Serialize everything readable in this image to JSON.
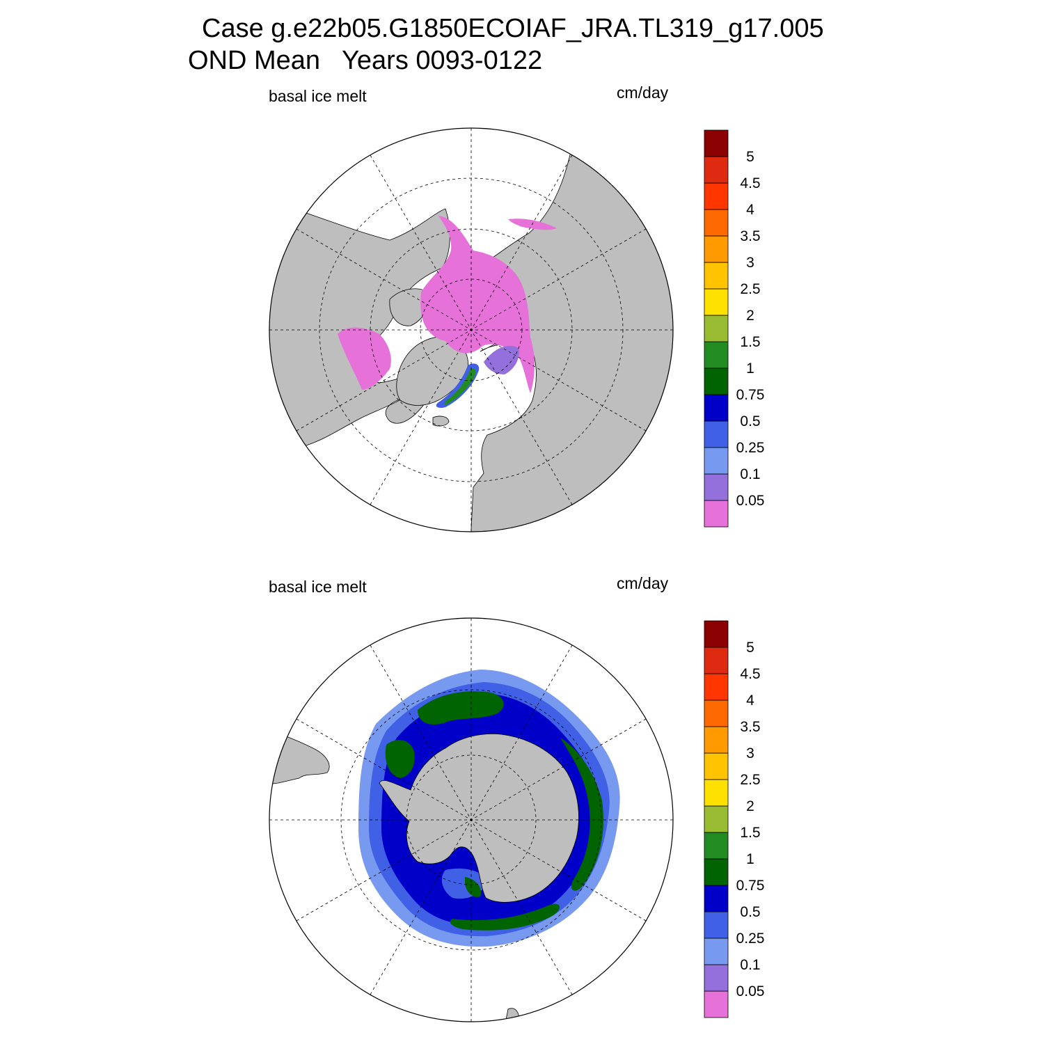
{
  "title_line1": "Case g.e22b05.G1850ECOIAF_JRA.TL319_g17.005",
  "title_line2": "OND Mean   Years 0093-0122",
  "panels": [
    {
      "id": "north",
      "left_label": "basal ice melt",
      "right_label": "cm/day"
    },
    {
      "id": "south",
      "left_label": "basal ice melt",
      "right_label": "cm/day"
    }
  ],
  "colorbar": {
    "colors": [
      "#e671d9",
      "#9370db",
      "#7799f0",
      "#4060e6",
      "#0000c8",
      "#006400",
      "#228b22",
      "#9abc32",
      "#ffe100",
      "#ffc300",
      "#ff9b00",
      "#ff6a00",
      "#ff3600",
      "#dd2a10",
      "#8b0000"
    ],
    "labels": [
      "0.05",
      "0.1",
      "0.25",
      "0.5",
      "0.75",
      "1",
      "1.5",
      "2",
      "2.5",
      "3",
      "3.5",
      "4",
      "4.5",
      "5"
    ]
  },
  "colors": {
    "land": "#bebebe",
    "ocean": "#ffffff",
    "grid": "#000000"
  }
}
